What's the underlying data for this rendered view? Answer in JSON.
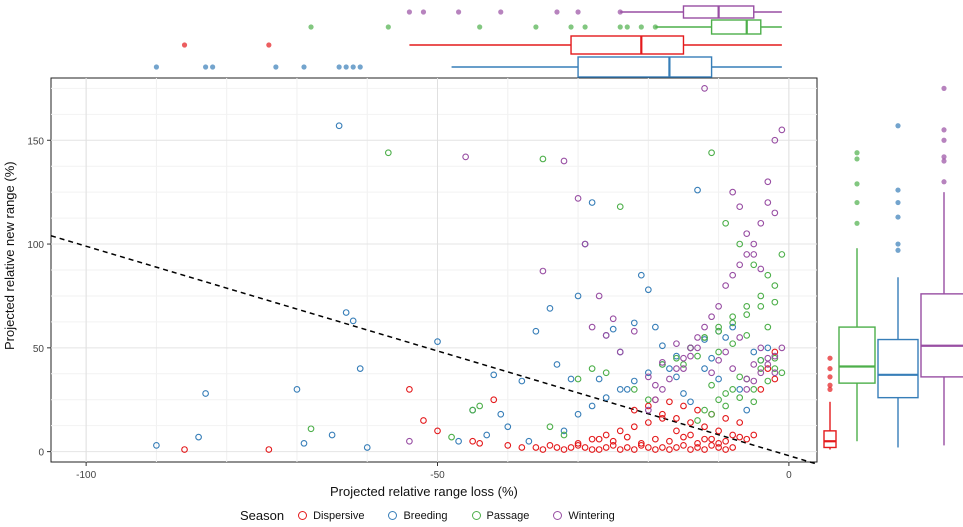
{
  "chart_data": {
    "type": "scatter",
    "xlabel": "Projected relative range loss (%)",
    "ylabel": "Projected relative new range (%)",
    "xlim": [
      -105,
      4
    ],
    "ylim": [
      -5,
      180
    ],
    "x_ticks": [
      "-100",
      "-50",
      "0"
    ],
    "y_ticks": [
      "0",
      "50",
      "100",
      "150"
    ],
    "grid": true,
    "reference_line": {
      "style": "dashed",
      "from": [
        -105,
        104
      ],
      "to": [
        4,
        -6
      ]
    },
    "legend": {
      "title": "Season",
      "placement": "bottom"
    },
    "series": [
      {
        "name": "Dispersive",
        "color": "#e41a1c",
        "x": [
          -86,
          -74,
          -54,
          -52,
          -50,
          -45,
          -44,
          -42,
          -40,
          -38,
          -36,
          -35,
          -34,
          -33,
          -32,
          -31,
          -30,
          -29,
          -28,
          -27,
          -26,
          -25,
          -24,
          -23,
          -22,
          -21,
          -20,
          -19,
          -18,
          -17,
          -16,
          -15,
          -14,
          -13,
          -12,
          -11,
          -10,
          -9,
          -8,
          -28,
          -26,
          -24,
          -22,
          -20,
          -18,
          -16,
          -14,
          -12,
          -10,
          -22,
          -20,
          -18,
          -16,
          -14,
          -12,
          -10,
          -8,
          -6,
          -4,
          -2,
          -30,
          -27,
          -25,
          -23,
          -21,
          -19,
          -17,
          -15,
          -13,
          -11,
          -9,
          -7,
          -5,
          -3,
          -19,
          -17,
          -15,
          -13,
          -11,
          -9,
          -7,
          -2
        ],
        "y": [
          1,
          1,
          30,
          15,
          10,
          5,
          4,
          25,
          3,
          2,
          2,
          1,
          3,
          2,
          1,
          2,
          3,
          2,
          1,
          1,
          2,
          3,
          1,
          2,
          1,
          3,
          2,
          1,
          2,
          1,
          2,
          3,
          1,
          2,
          1,
          3,
          2,
          1,
          2,
          6,
          8,
          10,
          12,
          14,
          16,
          10,
          8,
          6,
          4,
          20,
          22,
          18,
          16,
          14,
          12,
          10,
          8,
          6,
          30,
          48,
          4,
          6,
          5,
          7,
          4,
          6,
          5,
          7,
          4,
          6,
          5,
          7,
          8,
          40,
          25,
          24,
          22,
          20,
          18,
          16,
          14,
          35
        ],
        "box": {
          "min": 1,
          "q1": 2,
          "median": 5,
          "q3": 10,
          "max": 24,
          "outliers": [
            30,
            32,
            36,
            40,
            45
          ]
        },
        "top_box": {
          "min": -54,
          "q1": -31,
          "median": -21,
          "q3": -15,
          "max": -1,
          "outliers": [
            -86,
            -74
          ]
        }
      },
      {
        "name": "Breeding",
        "color": "#377eb8",
        "x": [
          -90,
          -84,
          -83,
          -70,
          -69,
          -65,
          -64,
          -63,
          -62,
          -61,
          -60,
          -50,
          -47,
          -45,
          -43,
          -42,
          -41,
          -40,
          -38,
          -37,
          -36,
          -34,
          -33,
          -32,
          -31,
          -30,
          -29,
          -28,
          -27,
          -26,
          -25,
          -24,
          -23,
          -22,
          -21,
          -20,
          -19,
          -18,
          -17,
          -16,
          -15,
          -14,
          -13,
          -12,
          -11,
          -10,
          -9,
          -8,
          -7,
          -6,
          -5,
          -4,
          -3,
          -30,
          -28,
          -26,
          -24,
          -22,
          -20,
          -18,
          -16,
          -14,
          -12,
          -10
        ],
        "y": [
          3,
          7,
          28,
          30,
          4,
          8,
          157,
          67,
          63,
          40,
          2,
          53,
          5,
          20,
          8,
          37,
          18,
          12,
          34,
          5,
          58,
          69,
          42,
          10,
          35,
          75,
          100,
          120,
          35,
          56,
          59,
          48,
          30,
          62,
          85,
          78,
          60,
          51,
          40,
          36,
          28,
          24,
          126,
          40,
          45,
          35,
          55,
          60,
          30,
          20,
          48,
          44,
          50,
          18,
          22,
          26,
          30,
          34,
          38,
          42,
          46,
          50,
          54,
          58
        ],
        "box": {
          "min": 2,
          "q1": 26,
          "median": 37,
          "q3": 54,
          "max": 84,
          "outliers": [
            97,
            100,
            113,
            120,
            126,
            157
          ]
        },
        "top_box": {
          "min": -48,
          "q1": -30,
          "median": -17,
          "q3": -11,
          "max": -1,
          "outliers": [
            -90,
            -83,
            -82,
            -73,
            -69,
            -64,
            -63,
            -62,
            -61
          ]
        }
      },
      {
        "name": "Passage",
        "color": "#4daf4a",
        "x": [
          -68,
          -57,
          -48,
          -45,
          -44,
          -35,
          -34,
          -32,
          -30,
          -28,
          -26,
          -24,
          -22,
          -20,
          -18,
          -16,
          -14,
          -12,
          -10,
          -8,
          -6,
          -4,
          -2,
          -11,
          -9,
          -7,
          -5,
          -3,
          -1,
          -12,
          -10,
          -8,
          -6,
          -4,
          -2,
          -14,
          -12,
          -10,
          -8,
          -6,
          -4,
          -2,
          -13,
          -11,
          -9,
          -7,
          -5,
          -3,
          -1,
          -10,
          -8,
          -6,
          -4,
          -2,
          -15,
          -13,
          -11,
          -9,
          -7,
          -5,
          -3
        ],
        "y": [
          11,
          144,
          7,
          20,
          22,
          141,
          12,
          8,
          35,
          40,
          38,
          118,
          30,
          25,
          42,
          45,
          50,
          55,
          60,
          65,
          70,
          75,
          80,
          144,
          110,
          100,
          90,
          85,
          95,
          20,
          25,
          30,
          35,
          40,
          45,
          50,
          55,
          58,
          62,
          66,
          70,
          72,
          15,
          18,
          22,
          26,
          30,
          34,
          38,
          48,
          52,
          56,
          44,
          40,
          42,
          46,
          32,
          28,
          36,
          24,
          60
        ],
        "box": {
          "min": 5,
          "q1": 33,
          "median": 41,
          "q3": 60,
          "max": 98,
          "outliers": [
            110,
            120,
            129,
            141,
            144
          ]
        },
        "top_box": {
          "min": -19,
          "q1": -11,
          "median": -6,
          "q3": -4,
          "max": -1,
          "outliers": [
            -68,
            -57,
            -44,
            -36,
            -31,
            -29,
            -24,
            -23,
            -21,
            -19
          ]
        }
      },
      {
        "name": "Wintering",
        "color": "#984ea3",
        "x": [
          -54,
          -46,
          -35,
          -32,
          -30,
          -29,
          -28,
          -27,
          -26,
          -25,
          -24,
          -22,
          -20,
          -19,
          -18,
          -16,
          -15,
          -14,
          -13,
          -12,
          -11,
          -10,
          -9,
          -8,
          -7,
          -6,
          -5,
          -4,
          -3,
          -2,
          -1,
          -2,
          -3,
          -4,
          -5,
          -6,
          -7,
          -8,
          -9,
          -10,
          -11,
          -12,
          -13,
          -14,
          -15,
          -16,
          -17,
          -18,
          -19,
          -20,
          -8,
          -7,
          -6,
          -5,
          -4,
          -3,
          -2,
          -6,
          -5,
          -4,
          -3,
          -2,
          -1
        ],
        "y": [
          5,
          142,
          87,
          140,
          122,
          100,
          60,
          75,
          56,
          64,
          48,
          58,
          36,
          32,
          43,
          52,
          40,
          46,
          50,
          175,
          38,
          44,
          48,
          40,
          55,
          35,
          42,
          50,
          45,
          38,
          155,
          150,
          130,
          110,
          100,
          95,
          90,
          85,
          80,
          70,
          65,
          60,
          55,
          50,
          45,
          40,
          35,
          30,
          25,
          20,
          125,
          118,
          105,
          95,
          88,
          120,
          115,
          30,
          34,
          38,
          42,
          46,
          50
        ],
        "box": {
          "min": 3,
          "q1": 36,
          "median": 51,
          "q3": 76,
          "max": 125,
          "outliers": [
            130,
            140,
            142,
            150,
            155,
            175
          ]
        },
        "top_box": {
          "min": -24,
          "q1": -15,
          "median": -10,
          "q3": -5,
          "max": -1,
          "outliers": [
            -54,
            -52,
            -47,
            -41,
            -33,
            -30,
            -24
          ]
        }
      }
    ]
  }
}
